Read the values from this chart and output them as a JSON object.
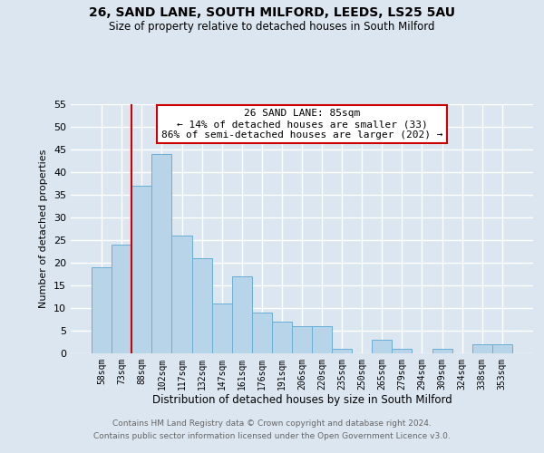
{
  "title1": "26, SAND LANE, SOUTH MILFORD, LEEDS, LS25 5AU",
  "title2": "Size of property relative to detached houses in South Milford",
  "xlabel": "Distribution of detached houses by size in South Milford",
  "ylabel": "Number of detached properties",
  "footnote1": "Contains HM Land Registry data © Crown copyright and database right 2024.",
  "footnote2": "Contains public sector information licensed under the Open Government Licence v3.0.",
  "bar_labels": [
    "58sqm",
    "73sqm",
    "88sqm",
    "102sqm",
    "117sqm",
    "132sqm",
    "147sqm",
    "161sqm",
    "176sqm",
    "191sqm",
    "206sqm",
    "220sqm",
    "235sqm",
    "250sqm",
    "265sqm",
    "279sqm",
    "294sqm",
    "309sqm",
    "324sqm",
    "338sqm",
    "353sqm"
  ],
  "bar_values": [
    19,
    24,
    37,
    44,
    26,
    21,
    11,
    17,
    9,
    7,
    6,
    6,
    1,
    0,
    3,
    1,
    0,
    1,
    0,
    2,
    2
  ],
  "bar_color": "#b8d4e8",
  "bar_edge_color": "#6aaed6",
  "vline_index": 2,
  "vline_color": "#cc0000",
  "ylim": [
    0,
    55
  ],
  "yticks": [
    0,
    5,
    10,
    15,
    20,
    25,
    30,
    35,
    40,
    45,
    50,
    55
  ],
  "annotation_text": "26 SAND LANE: 85sqm\n← 14% of detached houses are smaller (33)\n86% of semi-detached houses are larger (202) →",
  "annotation_box_color": "#ffffff",
  "annotation_box_edge": "#cc0000",
  "bg_color": "#dce6f0",
  "plot_bg_color": "#dce6f0"
}
